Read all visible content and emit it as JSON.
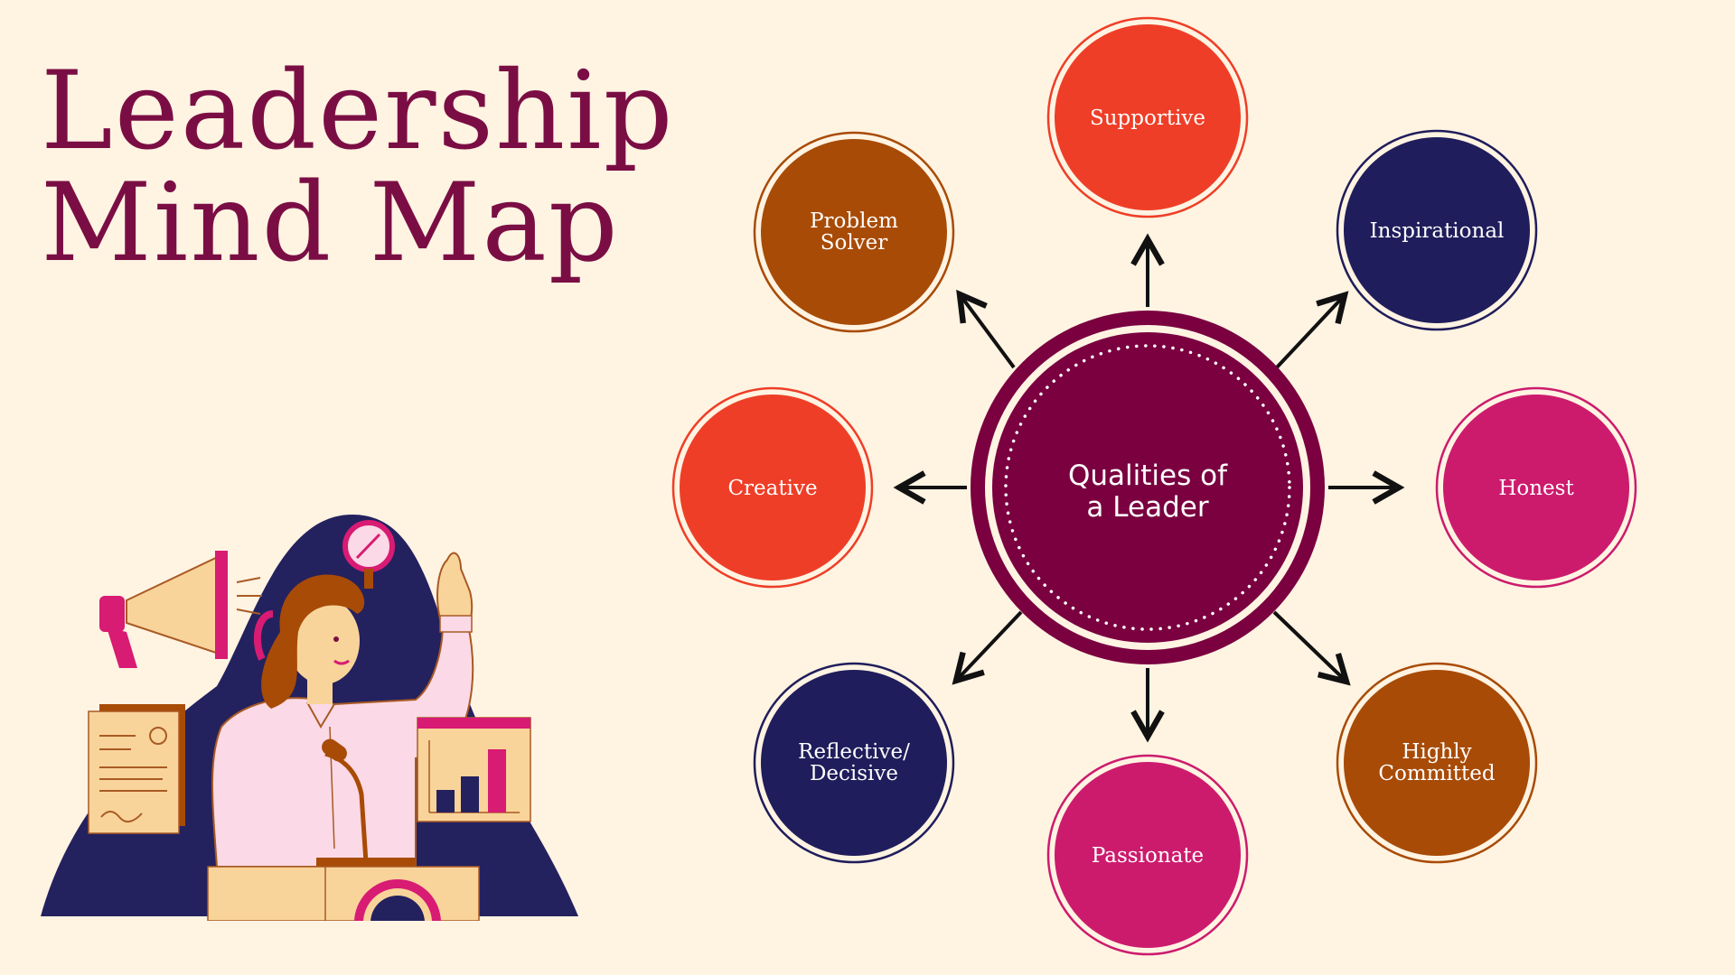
{
  "title": {
    "line1": "Leadership",
    "line2": "Mind Map"
  },
  "center": {
    "line1": "Qualities of",
    "line2": "a Leader"
  },
  "nodes": {
    "supportive": {
      "line1": "Supportive",
      "color": "#ef3e27"
    },
    "inspirational": {
      "line1": "Inspirational",
      "color": "#1f1d5b"
    },
    "honest": {
      "line1": "Honest",
      "color": "#cc1b6d"
    },
    "highly_committed": {
      "line1": "Highly",
      "line2": "Committed",
      "color": "#a84b06"
    },
    "passionate": {
      "line1": "Passionate",
      "color": "#cc1b6d"
    },
    "reflective": {
      "line1": "Reflective/",
      "line2": "Decisive",
      "color": "#1f1d5b"
    },
    "creative": {
      "line1": "Creative",
      "color": "#ef3e27"
    },
    "problem_solver": {
      "line1": "Problem",
      "line2": "Solver",
      "color": "#a84b06"
    }
  },
  "colors": {
    "background": "#fff3e2",
    "title": "#7a0e44",
    "center": "#7a0040",
    "arrow": "#111111"
  }
}
